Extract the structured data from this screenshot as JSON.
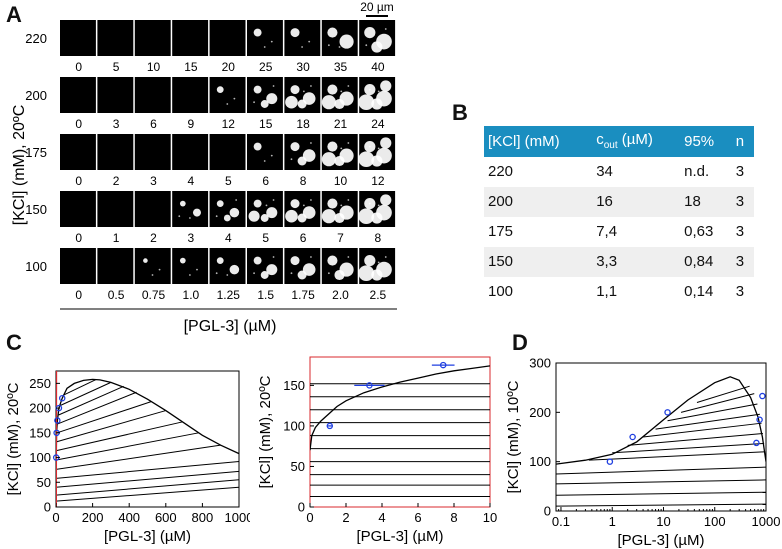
{
  "panels": {
    "a": "A",
    "b": "B",
    "c": "C",
    "d": "D"
  },
  "panel_a": {
    "scale_bar": "20 µm",
    "y_label": "[KCl] (mM), 20ºC",
    "x_label": "[PGL-3] (µM)",
    "rows": [
      {
        "kcl": "220",
        "concs": [
          "0",
          "5",
          "10",
          "15",
          "20",
          "25",
          "30",
          "35",
          "40"
        ],
        "droplets": [
          0,
          0,
          0,
          0,
          0,
          1,
          1,
          2,
          3
        ]
      },
      {
        "kcl": "200",
        "concs": [
          "0",
          "3",
          "6",
          "9",
          "12",
          "15",
          "18",
          "21",
          "24"
        ],
        "droplets": [
          0,
          0,
          0,
          0,
          1,
          3,
          4,
          4,
          5
        ]
      },
      {
        "kcl": "175",
        "concs": [
          "0",
          "2",
          "3",
          "4",
          "5",
          "6",
          "8",
          "10",
          "12"
        ],
        "droplets": [
          0,
          0,
          0,
          0,
          0,
          1,
          3,
          4,
          5
        ]
      },
      {
        "kcl": "150",
        "concs": [
          "0",
          "1",
          "2",
          "3",
          "4",
          "5",
          "6",
          "7",
          "8"
        ],
        "droplets": [
          0,
          0,
          0,
          2,
          3,
          4,
          4,
          4,
          5
        ]
      },
      {
        "kcl": "100",
        "concs": [
          "0",
          "0.5",
          "0.75",
          "1.0",
          "1.25",
          "1.5",
          "1.75",
          "2.0",
          "2.5"
        ],
        "droplets": [
          0,
          0,
          1,
          1,
          2,
          3,
          3,
          3,
          4
        ]
      }
    ]
  },
  "table_b": {
    "headers": {
      "kcl": "[KCl] (mM)",
      "cout_main": "c",
      "cout_sub": "out",
      "cout_unit": " (µM)",
      "pct": "95%",
      "n": "n"
    },
    "rows": [
      {
        "kcl": "220",
        "cout": "34",
        "pct": "n.d.",
        "n": "3"
      },
      {
        "kcl": "200",
        "cout": "16",
        "pct": "18",
        "n": "3"
      },
      {
        "kcl": "175",
        "cout": "7,4",
        "pct": "0,63",
        "n": "3"
      },
      {
        "kcl": "150",
        "cout": "3,3",
        "pct": "0,84",
        "n": "3"
      },
      {
        "kcl": "100",
        "cout": "1,1",
        "pct": "0,14",
        "n": "3"
      }
    ]
  },
  "colors": {
    "table_header": "#1a8ec0",
    "points": "#1f3fe0",
    "zoom_frame": "#d9292e",
    "droplet": "#ffffff",
    "image_bg": "#000000"
  },
  "chart_data": [
    {
      "type": "line",
      "title": "",
      "xlabel": "[PGL-3] (µM)",
      "ylabel": "[KCl] (mM), 20ºC",
      "xlim": [
        0,
        1000
      ],
      "ylim": [
        0,
        275
      ],
      "xticks": [
        0,
        200,
        400,
        600,
        800,
        1000
      ],
      "yticks": [
        0,
        50,
        100,
        150,
        200,
        250
      ],
      "binodal": {
        "x": [
          0,
          1.1,
          3.3,
          7.4,
          16,
          34,
          60,
          100,
          150,
          200,
          240,
          300,
          400,
          500,
          600,
          700,
          800,
          900,
          1000
        ],
        "y": [
          70,
          100,
          150,
          175,
          200,
          220,
          240,
          250,
          256,
          258,
          257,
          252,
          238,
          218,
          195,
          170,
          145,
          125,
          108
        ]
      },
      "points": {
        "x": [
          1.1,
          3.3,
          7.4,
          16,
          34
        ],
        "y": [
          100,
          150,
          175,
          200,
          220
        ]
      },
      "tie_lines": [
        {
          "x": [
            0,
            1000
          ],
          "y": [
            12,
            40
          ]
        },
        {
          "x": [
            0,
            1000
          ],
          "y": [
            24,
            55
          ]
        },
        {
          "x": [
            0,
            1000
          ],
          "y": [
            40,
            72
          ]
        },
        {
          "x": [
            0,
            1000
          ],
          "y": [
            58,
            92
          ]
        },
        {
          "x": [
            0,
            900
          ],
          "y": [
            76,
            125
          ]
        },
        {
          "x": [
            1.5,
            780
          ],
          "y": [
            95,
            150
          ]
        },
        {
          "x": [
            2.5,
            690
          ],
          "y": [
            114,
            172
          ]
        },
        {
          "x": [
            4,
            600
          ],
          "y": [
            132,
            195
          ]
        },
        {
          "x": [
            6,
            520
          ],
          "y": [
            150,
            213
          ]
        },
        {
          "x": [
            9,
            440
          ],
          "y": [
            168,
            232
          ]
        },
        {
          "x": [
            14,
            370
          ],
          "y": [
            186,
            244
          ]
        },
        {
          "x": [
            22,
            300
          ],
          "y": [
            205,
            252
          ]
        },
        {
          "x": [
            40,
            220
          ],
          "y": [
            226,
            258
          ]
        }
      ]
    },
    {
      "type": "line",
      "title": "",
      "xlabel": "[PGL-3] (µM)",
      "ylabel": "[KCl] (mM), 20ºC",
      "xlim": [
        0,
        10
      ],
      "ylim": [
        0,
        185
      ],
      "xticks": [
        0,
        2,
        4,
        6,
        8,
        10
      ],
      "yticks": [
        0,
        50,
        100,
        150
      ],
      "binodal": {
        "x": [
          0,
          0.1,
          0.3,
          0.6,
          1,
          1.5,
          2,
          3,
          4,
          5,
          6,
          7,
          8,
          9,
          10
        ],
        "y": [
          70,
          88,
          98,
          106,
          114,
          124,
          131,
          141,
          148,
          154,
          159,
          164,
          168,
          171,
          174
        ]
      },
      "points": [
        {
          "x": 1.1,
          "y": 100,
          "xerr": 0.14
        },
        {
          "x": 3.3,
          "y": 150,
          "xerr": 0.84
        },
        {
          "x": 7.4,
          "y": 175,
          "xerr": 0.63
        }
      ],
      "tie_lines_y": [
        13,
        27,
        40,
        56,
        72,
        88,
        104,
        120,
        136,
        152
      ]
    },
    {
      "type": "line",
      "title": "",
      "xlabel": "[PGL-3] (µM)",
      "ylabel": "[KCl] (mM), 10ºC",
      "xscale": "log",
      "xlim": [
        0.08,
        1000
      ],
      "ylim": [
        0,
        300
      ],
      "xticks": [
        0.1,
        1,
        10,
        100,
        1000
      ],
      "xticklabels": [
        "0.1",
        "1",
        "10",
        "100",
        "1000"
      ],
      "yticks": [
        0,
        100,
        200,
        300
      ],
      "binodal": {
        "x": [
          0.08,
          0.3,
          1,
          3,
          10,
          30,
          100,
          200,
          300,
          500,
          700,
          850,
          950,
          1000
        ],
        "y": [
          95,
          103,
          115,
          140,
          185,
          225,
          260,
          272,
          265,
          230,
          190,
          150,
          115,
          100
        ]
      },
      "points": [
        {
          "x": 0.9,
          "y": 100
        },
        {
          "x": 2.5,
          "y": 150
        },
        {
          "x": 12,
          "y": 200
        },
        {
          "x": 650,
          "y": 138
        },
        {
          "x": 750,
          "y": 185
        },
        {
          "x": 850,
          "y": 233
        }
      ],
      "tie_lines": [
        {
          "x": [
            0.08,
            1000
          ],
          "y": [
            10,
            14
          ]
        },
        {
          "x": [
            0.08,
            1000
          ],
          "y": [
            32,
            38
          ]
        },
        {
          "x": [
            0.08,
            1000
          ],
          "y": [
            55,
            63
          ]
        },
        {
          "x": [
            0.08,
            1000
          ],
          "y": [
            75,
            89
          ]
        },
        {
          "x": [
            0.35,
            960
          ],
          "y": [
            103,
            120
          ]
        },
        {
          "x": [
            1,
            920
          ],
          "y": [
            118,
            137
          ]
        },
        {
          "x": [
            2,
            870
          ],
          "y": [
            133,
            157
          ]
        },
        {
          "x": [
            4,
            820
          ],
          "y": [
            150,
            178
          ]
        },
        {
          "x": [
            7,
            760
          ],
          "y": [
            166,
            196
          ]
        },
        {
          "x": [
            12,
            680
          ],
          "y": [
            183,
            217
          ]
        },
        {
          "x": [
            22,
            590
          ],
          "y": [
            200,
            238
          ]
        },
        {
          "x": [
            45,
            480
          ],
          "y": [
            220,
            253
          ]
        }
      ]
    }
  ]
}
